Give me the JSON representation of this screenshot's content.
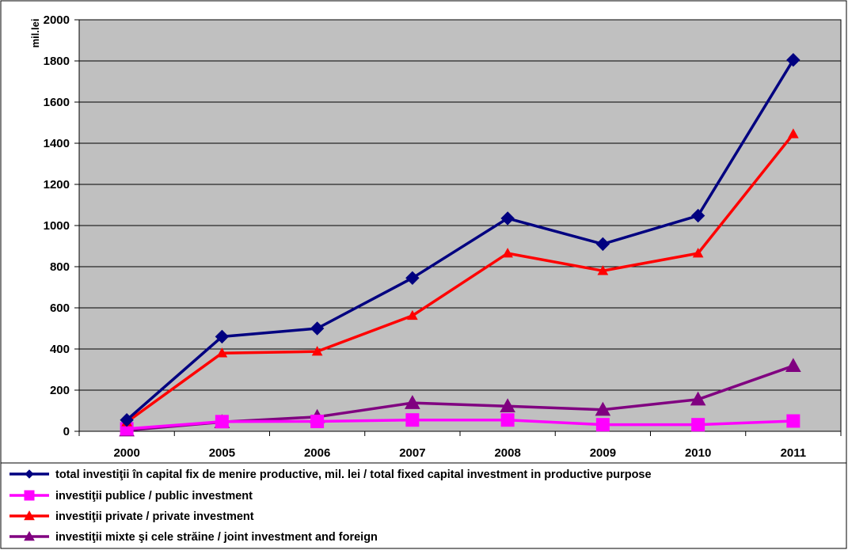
{
  "chart_data": {
    "type": "line",
    "ylabel": "mil.lei",
    "ylim": [
      0,
      2000
    ],
    "yticks": [
      "0",
      "200",
      "400",
      "600",
      "800",
      "1000",
      "1200",
      "1400",
      "1600",
      "1800",
      "2000"
    ],
    "categories": [
      "2000",
      "2005",
      "2006",
      "2007",
      "2008",
      "2009",
      "2010",
      "2011"
    ],
    "grid": "horizontal",
    "plot_background": "#c0c0c0",
    "legend_position": "bottom",
    "series": [
      {
        "name": "total investiţii în capital fix de menire productive, mil. lei / total fixed capital investment in productive purpose",
        "color": "#000080",
        "marker": "diamond",
        "values": [
          55,
          460,
          500,
          745,
          1035,
          910,
          1048,
          1805
        ]
      },
      {
        "name": "investiţii publice  / public investment",
        "color": "#ff00ff",
        "marker": "square",
        "values": [
          12,
          47,
          48,
          55,
          55,
          32,
          32,
          50
        ]
      },
      {
        "name": "investiţii private / private investment",
        "color": "#ff0000",
        "marker": "triangle",
        "values": [
          45,
          380,
          388,
          562,
          865,
          780,
          865,
          1445
        ]
      },
      {
        "name": "investiţii mixte şi cele străine / joint investment and foreign",
        "color": "#800080",
        "marker": "triangle",
        "values": [
          5,
          45,
          70,
          138,
          122,
          105,
          155,
          318
        ]
      }
    ]
  }
}
